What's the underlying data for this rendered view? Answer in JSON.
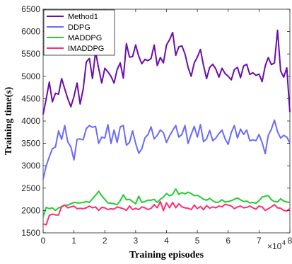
{
  "chart_data": {
    "type": "line",
    "xlabel": "Training episodes",
    "ylabel": "Training time(s)",
    "x_multiplier": "×10",
    "x_multiplier_exp": "4",
    "xlim": [
      0,
      8
    ],
    "ylim": [
      1500,
      6500
    ],
    "xticks": [
      "0",
      "1",
      "2",
      "3",
      "4",
      "5",
      "6",
      "7",
      "8"
    ],
    "yticks": [
      "1500",
      "2000",
      "2500",
      "3000",
      "3500",
      "4000",
      "4500",
      "5000",
      "5500",
      "6000",
      "6500"
    ],
    "grid": false,
    "legend_position": "top-left",
    "x": [
      0,
      0.1,
      0.2,
      0.3,
      0.4,
      0.5,
      0.6,
      0.7,
      0.8,
      0.9,
      1,
      1.1,
      1.2,
      1.3,
      1.4,
      1.5,
      1.6,
      1.7,
      1.8,
      1.9,
      2,
      2.1,
      2.2,
      2.3,
      2.4,
      2.5,
      2.6,
      2.7,
      2.8,
      2.9,
      3,
      3.1,
      3.2,
      3.3,
      3.4,
      3.5,
      3.6,
      3.7,
      3.8,
      3.9,
      4,
      4.1,
      4.2,
      4.3,
      4.4,
      4.5,
      4.6,
      4.7,
      4.8,
      4.9,
      5,
      5.1,
      5.2,
      5.3,
      5.4,
      5.5,
      5.6,
      5.7,
      5.8,
      5.9,
      6,
      6.1,
      6.2,
      6.3,
      6.4,
      6.5,
      6.6,
      6.7,
      6.8,
      6.9,
      7,
      7.1,
      7.2,
      7.3,
      7.4,
      7.5,
      7.6,
      7.7,
      7.8,
      7.9,
      8
    ],
    "series": [
      {
        "name": "Method1",
        "color": "#6a0dad",
        "values": [
          4150,
          4500,
          4870,
          4430,
          4620,
          4600,
          4950,
          4720,
          4500,
          4320,
          4550,
          4850,
          4380,
          4720,
          5320,
          5400,
          4950,
          5550,
          5180,
          4850,
          5180,
          5100,
          5000,
          4850,
          5150,
          5300,
          4960,
          5730,
          5430,
          5440,
          5700,
          5450,
          5280,
          5380,
          5350,
          5400,
          5700,
          5240,
          5420,
          5300,
          5700,
          5820,
          5980,
          5470,
          5660,
          5680,
          5500,
          5200,
          5000,
          5300,
          5430,
          5600,
          5240,
          4950,
          5200,
          5270,
          5160,
          4980,
          5180,
          5060,
          5000,
          4920,
          5150,
          5200,
          4970,
          5230,
          5270,
          5040,
          5080,
          5020,
          5050,
          4880,
          5230,
          5420,
          5260,
          5300,
          6030,
          5120,
          4980,
          5190,
          4200
        ]
      },
      {
        "name": "DDPG",
        "color": "#6a6aff",
        "values": [
          2700,
          3000,
          3200,
          3380,
          3420,
          3780,
          3590,
          3900,
          3530,
          3420,
          3130,
          3590,
          3600,
          3580,
          3830,
          3900,
          3860,
          3880,
          3500,
          3640,
          3620,
          3920,
          3500,
          3800,
          3520,
          3870,
          3900,
          3460,
          3520,
          3780,
          3500,
          3280,
          3380,
          3620,
          3700,
          3870,
          3600,
          3680,
          3800,
          3740,
          3520,
          3670,
          3790,
          3900,
          3640,
          3700,
          3900,
          3500,
          3700,
          3880,
          3640,
          3920,
          3540,
          3600,
          3790,
          3560,
          3620,
          3720,
          3800,
          3600,
          3480,
          3740,
          3900,
          3620,
          3820,
          3700,
          3800,
          3560,
          3580,
          3560,
          3700,
          3520,
          3270,
          3680,
          3820,
          4020,
          3760,
          3620,
          3680,
          3640,
          3510
        ]
      },
      {
        "name": "MADDPG",
        "color": "#22cc33",
        "values": [
          1850,
          2070,
          2040,
          2060,
          2000,
          2060,
          2080,
          2120,
          2120,
          2150,
          2180,
          2170,
          2170,
          2180,
          2200,
          2180,
          2260,
          2340,
          2430,
          2330,
          2250,
          2170,
          2160,
          2150,
          2130,
          2220,
          2350,
          2240,
          2250,
          2200,
          2150,
          2320,
          2180,
          2200,
          2230,
          2230,
          2250,
          2180,
          2250,
          2300,
          2380,
          2330,
          2360,
          2480,
          2360,
          2400,
          2370,
          2410,
          2380,
          2330,
          2340,
          2300,
          2250,
          2230,
          2270,
          2220,
          2180,
          2190,
          2240,
          2190,
          2200,
          2220,
          2250,
          2280,
          2240,
          2200,
          2210,
          2170,
          2180,
          2160,
          2220,
          2300,
          2320,
          2330,
          2240,
          2200,
          2190,
          2260,
          2210,
          2190,
          2180
        ]
      },
      {
        "name": "IMADDPG",
        "color": "#ff2d6e",
        "values": [
          1700,
          1680,
          1890,
          1920,
          1900,
          1900,
          2090,
          2120,
          2060,
          2080,
          2100,
          2040,
          2050,
          2040,
          2060,
          2100,
          2060,
          2080,
          2000,
          2070,
          2060,
          2020,
          2040,
          2030,
          2080,
          2060,
          2040,
          2000,
          2100,
          2020,
          2050,
          2020,
          2080,
          2060,
          2020,
          2050,
          2130,
          2060,
          2200,
          2000,
          2170,
          2060,
          2180,
          2060,
          2150,
          2080,
          2060,
          2050,
          2020,
          2120,
          2040,
          2090,
          2020,
          2110,
          2050,
          2080,
          2060,
          2100,
          2080,
          2140,
          2120,
          2100,
          2040,
          2080,
          2100,
          2060,
          2070,
          2100,
          2060,
          2030,
          2100,
          2080,
          2000,
          2040,
          2080,
          2130,
          2060,
          2050,
          2000,
          1990,
          2040
        ]
      }
    ]
  }
}
